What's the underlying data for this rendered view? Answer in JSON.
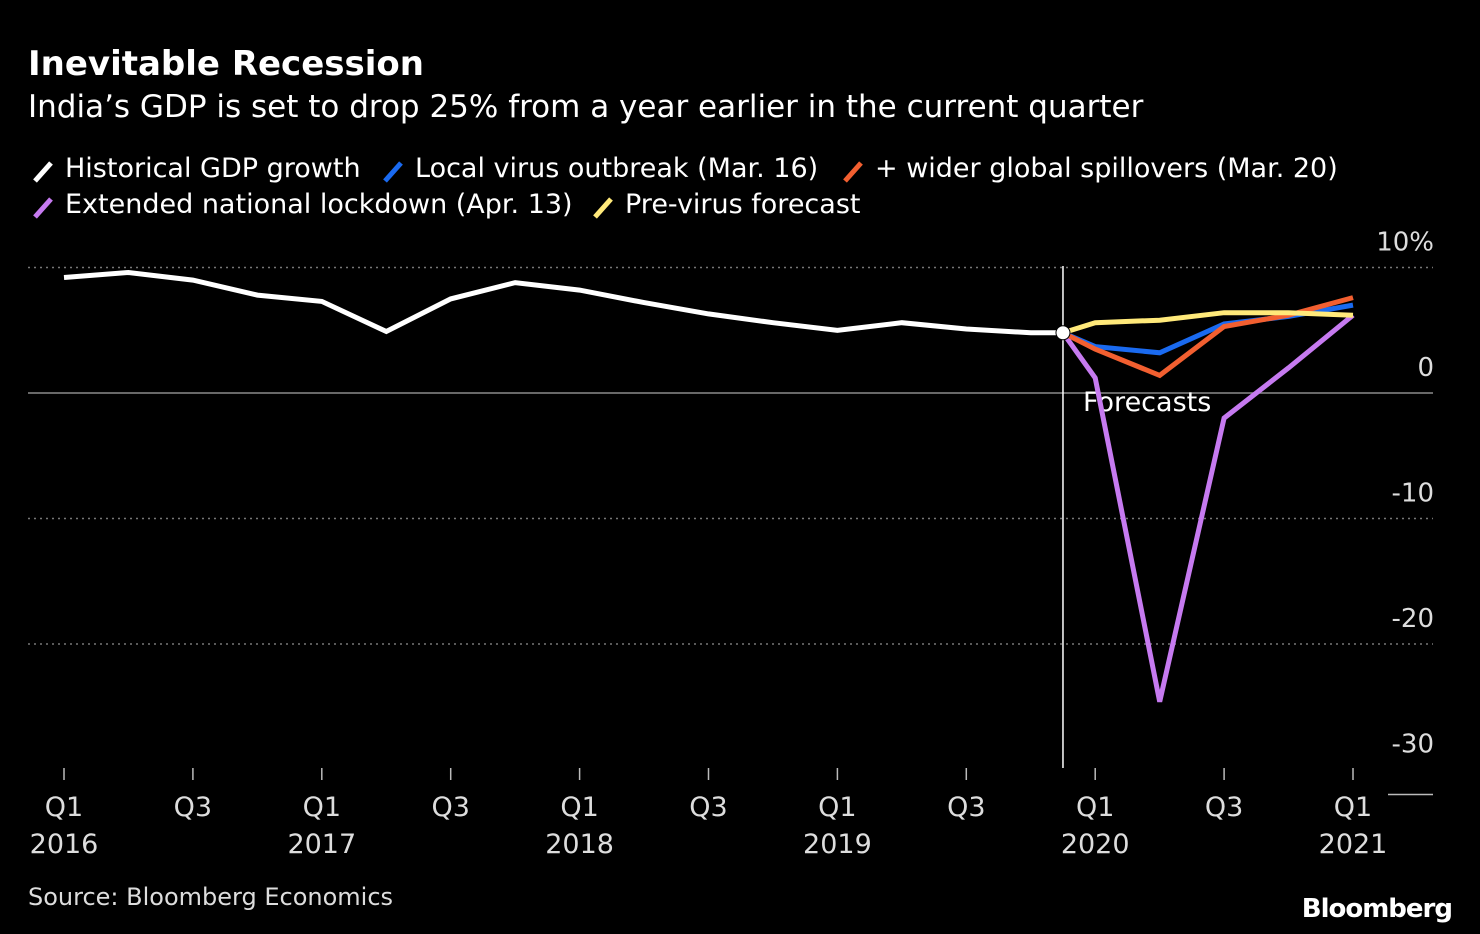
{
  "chart_data": {
    "type": "line",
    "title": "Inevitable Recession",
    "subtitle": "India’s GDP is set to drop 25% from a year earlier in the current quarter",
    "source": "Source: Bloomberg Economics",
    "brand": "Bloomberg",
    "forecast_label": "Forecasts",
    "ylim": [
      -30,
      10
    ],
    "yticks": [
      10,
      0,
      -10,
      -20,
      -30
    ],
    "ytick_labels": [
      "10%",
      "0",
      "-10",
      "-20",
      "-30"
    ],
    "quarters": [
      "2016Q1",
      "2016Q2",
      "2016Q3",
      "2016Q4",
      "2017Q1",
      "2017Q2",
      "2017Q3",
      "2017Q4",
      "2018Q1",
      "2018Q2",
      "2018Q3",
      "2018Q4",
      "2019Q1",
      "2019Q2",
      "2019Q3",
      "2019Q4",
      "2020Q1",
      "2020Q2",
      "2020Q3",
      "2020Q4",
      "2021Q1"
    ],
    "xtick_labels": [
      {
        "quarter": 0,
        "q": "Q1",
        "year": "2016"
      },
      {
        "quarter": 2,
        "q": "Q3",
        "year": ""
      },
      {
        "quarter": 4,
        "q": "Q1",
        "year": "2017"
      },
      {
        "quarter": 6,
        "q": "Q3",
        "year": ""
      },
      {
        "quarter": 8,
        "q": "Q1",
        "year": "2018"
      },
      {
        "quarter": 10,
        "q": "Q3",
        "year": ""
      },
      {
        "quarter": 12,
        "q": "Q1",
        "year": "2019"
      },
      {
        "quarter": 14,
        "q": "Q3",
        "year": ""
      },
      {
        "quarter": 16,
        "q": "Q1",
        "year": "2020"
      },
      {
        "quarter": 18,
        "q": "Q3",
        "year": ""
      },
      {
        "quarter": 20,
        "q": "Q1",
        "year": "2021"
      }
    ],
    "forecast_start_quarter": 15.5,
    "series": [
      {
        "name": "Historical GDP growth",
        "color": "#ffffff",
        "x": [
          0,
          1,
          2,
          3,
          4,
          5,
          6,
          7,
          8,
          9,
          10,
          11,
          12,
          13,
          14,
          15,
          15.5
        ],
        "values": [
          9.2,
          9.6,
          9.0,
          7.8,
          7.3,
          4.9,
          7.5,
          8.8,
          8.2,
          7.2,
          6.3,
          5.6,
          5.0,
          5.6,
          5.1,
          4.8,
          4.8
        ]
      },
      {
        "name": "Local virus outbreak (Mar. 16)",
        "color": "#1a6af0",
        "x": [
          15.5,
          16,
          17,
          18,
          19,
          20
        ],
        "values": [
          4.8,
          3.7,
          3.2,
          5.5,
          6.1,
          7.0
        ]
      },
      {
        "name": "+ wider global spillovers (Mar. 20)",
        "color": "#f25f30",
        "x": [
          15.5,
          16,
          17,
          18,
          19,
          20
        ],
        "values": [
          4.8,
          3.5,
          1.4,
          5.3,
          6.2,
          7.6
        ]
      },
      {
        "name": "Extended national lockdown (Apr. 13)",
        "color": "#c67af0",
        "x": [
          15.5,
          16,
          17,
          18,
          19,
          20
        ],
        "values": [
          4.8,
          1.2,
          -24.6,
          -2.0,
          2.0,
          6.2
        ]
      },
      {
        "name": "Pre-virus forecast",
        "color": "#ffe97a",
        "x": [
          15.5,
          16,
          17,
          18,
          19,
          20
        ],
        "values": [
          4.8,
          5.6,
          5.8,
          6.4,
          6.4,
          6.2
        ]
      }
    ]
  }
}
